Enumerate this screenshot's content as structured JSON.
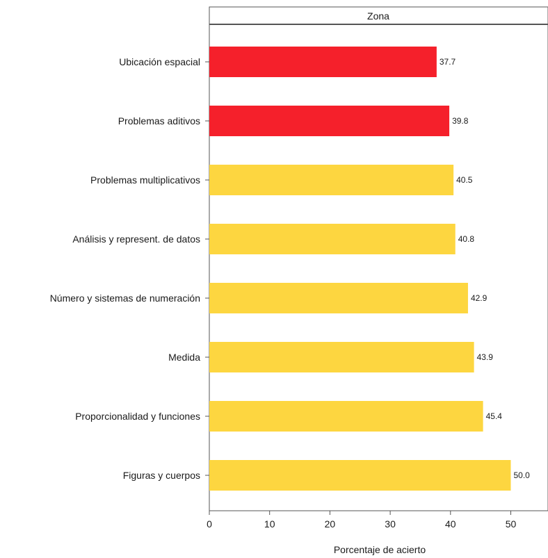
{
  "chart_data": {
    "type": "bar",
    "orientation": "horizontal",
    "panel_title": "Zona",
    "xlabel": "Porcentaje de acierto",
    "ylabel": "",
    "xlim": [
      0,
      55
    ],
    "xticks": [
      0,
      10,
      20,
      30,
      40,
      50
    ],
    "colors": {
      "low": "#f5202b",
      "normal": "#fdd640"
    },
    "categories": [
      "Ubicación espacial",
      "Problemas aditivos",
      "Problemas multiplicativos",
      "Análisis y represent. de datos",
      "Número y sistemas de numeración",
      "Medida",
      "Proporcionalidad y funciones",
      "Figuras y cuerpos"
    ],
    "values": [
      37.7,
      39.8,
      40.5,
      40.8,
      42.9,
      43.9,
      45.4,
      50.0
    ],
    "value_labels": [
      "37.7",
      "39.8",
      "40.5",
      "40.8",
      "42.9",
      "43.9",
      "45.4",
      "50.0"
    ],
    "bar_color_keys": [
      "low",
      "low",
      "normal",
      "normal",
      "normal",
      "normal",
      "normal",
      "normal"
    ]
  }
}
